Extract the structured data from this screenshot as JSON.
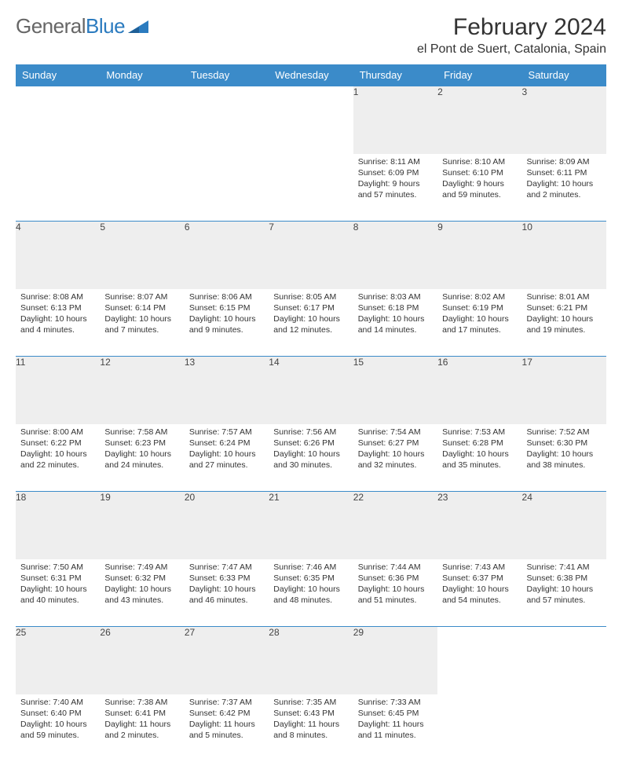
{
  "brand": {
    "part1": "General",
    "part2": "Blue"
  },
  "title": "February 2024",
  "location": "el Pont de Suert, Catalonia, Spain",
  "colors": {
    "header_bg": "#3b8bc9",
    "header_text": "#ffffff",
    "daynum_bg": "#eeeeee",
    "border": "#3b8bc9",
    "brand_grey": "#666666",
    "brand_blue": "#2b7bbf",
    "text": "#333333"
  },
  "fonts": {
    "title_size_pt": 22,
    "location_size_pt": 12,
    "dayheader_size_pt": 10,
    "daynum_size_pt": 9,
    "content_size_pt": 8
  },
  "day_headers": [
    "Sunday",
    "Monday",
    "Tuesday",
    "Wednesday",
    "Thursday",
    "Friday",
    "Saturday"
  ],
  "weeks": [
    {
      "nums": [
        "",
        "",
        "",
        "",
        "1",
        "2",
        "3"
      ],
      "cells": [
        null,
        null,
        null,
        null,
        {
          "sunrise": "8:11 AM",
          "sunset": "6:09 PM",
          "daylight": "9 hours and 57 minutes."
        },
        {
          "sunrise": "8:10 AM",
          "sunset": "6:10 PM",
          "daylight": "9 hours and 59 minutes."
        },
        {
          "sunrise": "8:09 AM",
          "sunset": "6:11 PM",
          "daylight": "10 hours and 2 minutes."
        }
      ]
    },
    {
      "nums": [
        "4",
        "5",
        "6",
        "7",
        "8",
        "9",
        "10"
      ],
      "cells": [
        {
          "sunrise": "8:08 AM",
          "sunset": "6:13 PM",
          "daylight": "10 hours and 4 minutes."
        },
        {
          "sunrise": "8:07 AM",
          "sunset": "6:14 PM",
          "daylight": "10 hours and 7 minutes."
        },
        {
          "sunrise": "8:06 AM",
          "sunset": "6:15 PM",
          "daylight": "10 hours and 9 minutes."
        },
        {
          "sunrise": "8:05 AM",
          "sunset": "6:17 PM",
          "daylight": "10 hours and 12 minutes."
        },
        {
          "sunrise": "8:03 AM",
          "sunset": "6:18 PM",
          "daylight": "10 hours and 14 minutes."
        },
        {
          "sunrise": "8:02 AM",
          "sunset": "6:19 PM",
          "daylight": "10 hours and 17 minutes."
        },
        {
          "sunrise": "8:01 AM",
          "sunset": "6:21 PM",
          "daylight": "10 hours and 19 minutes."
        }
      ]
    },
    {
      "nums": [
        "11",
        "12",
        "13",
        "14",
        "15",
        "16",
        "17"
      ],
      "cells": [
        {
          "sunrise": "8:00 AM",
          "sunset": "6:22 PM",
          "daylight": "10 hours and 22 minutes."
        },
        {
          "sunrise": "7:58 AM",
          "sunset": "6:23 PM",
          "daylight": "10 hours and 24 minutes."
        },
        {
          "sunrise": "7:57 AM",
          "sunset": "6:24 PM",
          "daylight": "10 hours and 27 minutes."
        },
        {
          "sunrise": "7:56 AM",
          "sunset": "6:26 PM",
          "daylight": "10 hours and 30 minutes."
        },
        {
          "sunrise": "7:54 AM",
          "sunset": "6:27 PM",
          "daylight": "10 hours and 32 minutes."
        },
        {
          "sunrise": "7:53 AM",
          "sunset": "6:28 PM",
          "daylight": "10 hours and 35 minutes."
        },
        {
          "sunrise": "7:52 AM",
          "sunset": "6:30 PM",
          "daylight": "10 hours and 38 minutes."
        }
      ]
    },
    {
      "nums": [
        "18",
        "19",
        "20",
        "21",
        "22",
        "23",
        "24"
      ],
      "cells": [
        {
          "sunrise": "7:50 AM",
          "sunset": "6:31 PM",
          "daylight": "10 hours and 40 minutes."
        },
        {
          "sunrise": "7:49 AM",
          "sunset": "6:32 PM",
          "daylight": "10 hours and 43 minutes."
        },
        {
          "sunrise": "7:47 AM",
          "sunset": "6:33 PM",
          "daylight": "10 hours and 46 minutes."
        },
        {
          "sunrise": "7:46 AM",
          "sunset": "6:35 PM",
          "daylight": "10 hours and 48 minutes."
        },
        {
          "sunrise": "7:44 AM",
          "sunset": "6:36 PM",
          "daylight": "10 hours and 51 minutes."
        },
        {
          "sunrise": "7:43 AM",
          "sunset": "6:37 PM",
          "daylight": "10 hours and 54 minutes."
        },
        {
          "sunrise": "7:41 AM",
          "sunset": "6:38 PM",
          "daylight": "10 hours and 57 minutes."
        }
      ]
    },
    {
      "nums": [
        "25",
        "26",
        "27",
        "28",
        "29",
        "",
        ""
      ],
      "cells": [
        {
          "sunrise": "7:40 AM",
          "sunset": "6:40 PM",
          "daylight": "10 hours and 59 minutes."
        },
        {
          "sunrise": "7:38 AM",
          "sunset": "6:41 PM",
          "daylight": "11 hours and 2 minutes."
        },
        {
          "sunrise": "7:37 AM",
          "sunset": "6:42 PM",
          "daylight": "11 hours and 5 minutes."
        },
        {
          "sunrise": "7:35 AM",
          "sunset": "6:43 PM",
          "daylight": "11 hours and 8 minutes."
        },
        {
          "sunrise": "7:33 AM",
          "sunset": "6:45 PM",
          "daylight": "11 hours and 11 minutes."
        },
        null,
        null
      ]
    }
  ],
  "labels": {
    "sunrise": "Sunrise:",
    "sunset": "Sunset:",
    "daylight": "Daylight:"
  }
}
